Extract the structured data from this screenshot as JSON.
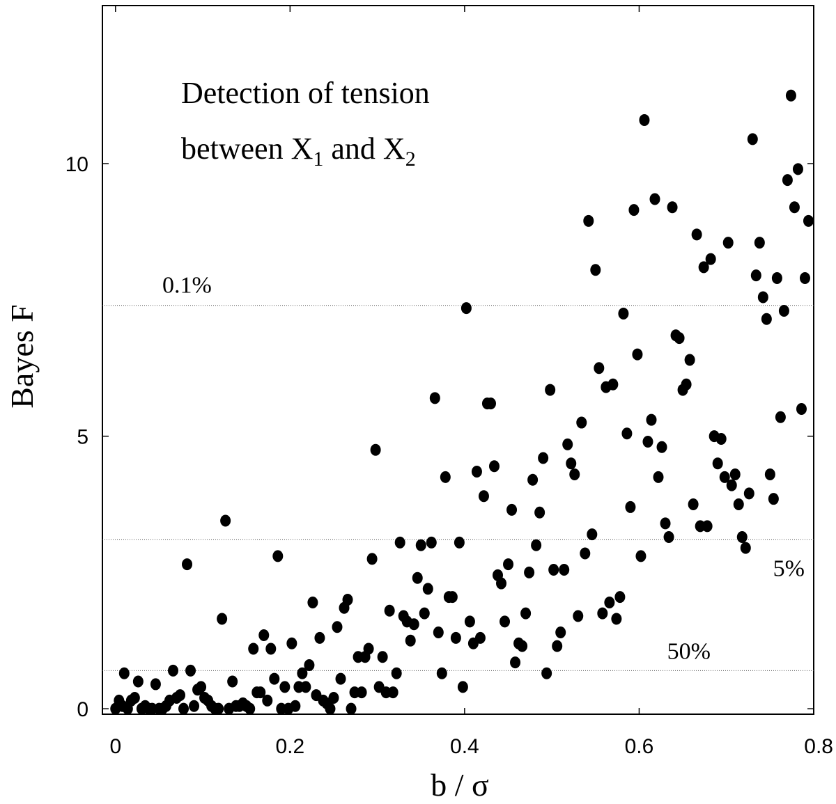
{
  "chart_data": {
    "type": "scatter",
    "xlabel": "b / σ",
    "ylabel": "Bayes  F",
    "xlim": [
      -0.015,
      0.8
    ],
    "ylim": [
      -0.1,
      12.9
    ],
    "xticks": [
      0,
      0.2,
      0.4,
      0.6,
      0.8
    ],
    "xtick_labels": [
      "0",
      "0.2",
      "0.4",
      "0.6",
      "0.8"
    ],
    "yticks": [
      0,
      5,
      10
    ],
    "ytick_labels": [
      "0",
      "5",
      "10"
    ],
    "grid": false,
    "annotation": {
      "line1": "Detection of tension",
      "line2_prefix": "between X",
      "sub1": "1",
      "line2_mid": " and X",
      "sub2": "2"
    },
    "reference_lines": [
      {
        "label": "0.1%",
        "y": 7.4
      },
      {
        "label": "5%",
        "y": 3.1
      },
      {
        "label": "50%",
        "y": 0.7
      }
    ],
    "series": [
      {
        "points": [
          [
            0.0,
            0.0
          ],
          [
            0.004,
            0.15
          ],
          [
            0.008,
            0.05
          ],
          [
            0.01,
            0.65
          ],
          [
            0.014,
            0.0
          ],
          [
            0.018,
            0.15
          ],
          [
            0.022,
            0.2
          ],
          [
            0.026,
            0.5
          ],
          [
            0.03,
            0.0
          ],
          [
            0.034,
            0.05
          ],
          [
            0.038,
            0.0
          ],
          [
            0.042,
            0.0
          ],
          [
            0.046,
            0.45
          ],
          [
            0.05,
            0.0
          ],
          [
            0.054,
            0.0
          ],
          [
            0.058,
            0.05
          ],
          [
            0.062,
            0.15
          ],
          [
            0.066,
            0.7
          ],
          [
            0.07,
            0.2
          ],
          [
            0.074,
            0.25
          ],
          [
            0.078,
            0.0
          ],
          [
            0.082,
            2.65
          ],
          [
            0.086,
            0.7
          ],
          [
            0.09,
            0.05
          ],
          [
            0.094,
            0.35
          ],
          [
            0.098,
            0.4
          ],
          [
            0.102,
            0.2
          ],
          [
            0.106,
            0.15
          ],
          [
            0.11,
            0.05
          ],
          [
            0.114,
            0.0
          ],
          [
            0.118,
            0.0
          ],
          [
            0.122,
            1.65
          ],
          [
            0.126,
            3.45
          ],
          [
            0.13,
            0.0
          ],
          [
            0.134,
            0.5
          ],
          [
            0.138,
            0.05
          ],
          [
            0.142,
            0.05
          ],
          [
            0.146,
            0.1
          ],
          [
            0.15,
            0.05
          ],
          [
            0.154,
            0.0
          ],
          [
            0.158,
            1.1
          ],
          [
            0.162,
            0.3
          ],
          [
            0.166,
            0.3
          ],
          [
            0.17,
            1.35
          ],
          [
            0.174,
            0.15
          ],
          [
            0.178,
            1.1
          ],
          [
            0.182,
            0.55
          ],
          [
            0.186,
            2.8
          ],
          [
            0.19,
            0.0
          ],
          [
            0.194,
            0.4
          ],
          [
            0.198,
            0.0
          ],
          [
            0.202,
            1.2
          ],
          [
            0.206,
            0.05
          ],
          [
            0.21,
            0.4
          ],
          [
            0.214,
            0.65
          ],
          [
            0.218,
            0.4
          ],
          [
            0.222,
            0.8
          ],
          [
            0.226,
            1.95
          ],
          [
            0.23,
            0.25
          ],
          [
            0.234,
            1.3
          ],
          [
            0.238,
            0.15
          ],
          [
            0.242,
            0.1
          ],
          [
            0.246,
            0.0
          ],
          [
            0.25,
            0.2
          ],
          [
            0.254,
            1.5
          ],
          [
            0.258,
            0.55
          ],
          [
            0.262,
            1.85
          ],
          [
            0.266,
            2.0
          ],
          [
            0.27,
            0.0
          ],
          [
            0.274,
            0.3
          ],
          [
            0.278,
            0.95
          ],
          [
            0.282,
            0.3
          ],
          [
            0.286,
            0.95
          ],
          [
            0.29,
            1.1
          ],
          [
            0.294,
            2.75
          ],
          [
            0.298,
            4.75
          ],
          [
            0.302,
            0.4
          ],
          [
            0.306,
            0.95
          ],
          [
            0.31,
            0.3
          ],
          [
            0.314,
            1.8
          ],
          [
            0.318,
            0.3
          ],
          [
            0.322,
            0.65
          ],
          [
            0.326,
            3.05
          ],
          [
            0.33,
            1.7
          ],
          [
            0.334,
            1.6
          ],
          [
            0.338,
            1.25
          ],
          [
            0.342,
            1.55
          ],
          [
            0.346,
            2.4
          ],
          [
            0.35,
            3.0
          ],
          [
            0.354,
            1.75
          ],
          [
            0.358,
            2.2
          ],
          [
            0.362,
            3.05
          ],
          [
            0.366,
            5.7
          ],
          [
            0.37,
            1.4
          ],
          [
            0.374,
            0.65
          ],
          [
            0.378,
            4.25
          ],
          [
            0.382,
            2.05
          ],
          [
            0.386,
            2.05
          ],
          [
            0.39,
            1.3
          ],
          [
            0.394,
            3.05
          ],
          [
            0.398,
            0.4
          ],
          [
            0.402,
            7.35
          ],
          [
            0.406,
            1.6
          ],
          [
            0.41,
            1.2
          ],
          [
            0.414,
            4.35
          ],
          [
            0.418,
            1.3
          ],
          [
            0.422,
            3.9
          ],
          [
            0.426,
            5.6
          ],
          [
            0.43,
            5.6
          ],
          [
            0.434,
            4.45
          ],
          [
            0.438,
            2.45
          ],
          [
            0.442,
            2.3
          ],
          [
            0.446,
            1.6
          ],
          [
            0.45,
            2.65
          ],
          [
            0.454,
            3.65
          ],
          [
            0.458,
            0.85
          ],
          [
            0.462,
            1.2
          ],
          [
            0.466,
            1.15
          ],
          [
            0.47,
            1.75
          ],
          [
            0.474,
            2.5
          ],
          [
            0.478,
            4.2
          ],
          [
            0.482,
            3.0
          ],
          [
            0.486,
            3.6
          ],
          [
            0.49,
            4.6
          ],
          [
            0.494,
            0.65
          ],
          [
            0.498,
            5.85
          ],
          [
            0.502,
            2.55
          ],
          [
            0.506,
            1.15
          ],
          [
            0.51,
            1.4
          ],
          [
            0.514,
            2.55
          ],
          [
            0.518,
            4.85
          ],
          [
            0.522,
            4.5
          ],
          [
            0.526,
            4.3
          ],
          [
            0.53,
            1.7
          ],
          [
            0.534,
            5.25
          ],
          [
            0.538,
            2.85
          ],
          [
            0.542,
            8.95
          ],
          [
            0.546,
            3.2
          ],
          [
            0.55,
            8.05
          ],
          [
            0.554,
            6.25
          ],
          [
            0.558,
            1.75
          ],
          [
            0.562,
            5.9
          ],
          [
            0.566,
            1.95
          ],
          [
            0.57,
            5.95
          ],
          [
            0.574,
            1.65
          ],
          [
            0.578,
            2.05
          ],
          [
            0.582,
            7.25
          ],
          [
            0.586,
            5.05
          ],
          [
            0.59,
            3.7
          ],
          [
            0.594,
            9.15
          ],
          [
            0.598,
            6.5
          ],
          [
            0.602,
            2.8
          ],
          [
            0.606,
            10.8
          ],
          [
            0.61,
            4.9
          ],
          [
            0.614,
            5.3
          ],
          [
            0.618,
            9.35
          ],
          [
            0.622,
            4.25
          ],
          [
            0.626,
            4.8
          ],
          [
            0.63,
            3.4
          ],
          [
            0.634,
            3.15
          ],
          [
            0.638,
            9.2
          ],
          [
            0.642,
            6.85
          ],
          [
            0.646,
            6.8
          ],
          [
            0.65,
            5.85
          ],
          [
            0.654,
            5.95
          ],
          [
            0.658,
            6.4
          ],
          [
            0.662,
            3.75
          ],
          [
            0.666,
            8.7
          ],
          [
            0.67,
            3.35
          ],
          [
            0.674,
            8.1
          ],
          [
            0.678,
            3.35
          ],
          [
            0.682,
            8.25
          ],
          [
            0.686,
            5.0
          ],
          [
            0.69,
            4.5
          ],
          [
            0.694,
            4.95
          ],
          [
            0.698,
            4.25
          ],
          [
            0.702,
            8.55
          ],
          [
            0.706,
            4.1
          ],
          [
            0.71,
            4.3
          ],
          [
            0.714,
            3.75
          ],
          [
            0.718,
            3.15
          ],
          [
            0.722,
            2.95
          ],
          [
            0.726,
            3.95
          ],
          [
            0.73,
            10.45
          ],
          [
            0.734,
            7.95
          ],
          [
            0.738,
            8.55
          ],
          [
            0.742,
            7.55
          ],
          [
            0.746,
            7.15
          ],
          [
            0.75,
            4.3
          ],
          [
            0.754,
            3.85
          ],
          [
            0.758,
            7.9
          ],
          [
            0.762,
            5.35
          ],
          [
            0.766,
            7.3
          ],
          [
            0.77,
            9.7
          ],
          [
            0.774,
            11.25
          ],
          [
            0.778,
            9.2
          ],
          [
            0.782,
            9.9
          ],
          [
            0.786,
            5.5
          ],
          [
            0.79,
            7.9
          ],
          [
            0.794,
            8.95
          ]
        ]
      }
    ]
  }
}
